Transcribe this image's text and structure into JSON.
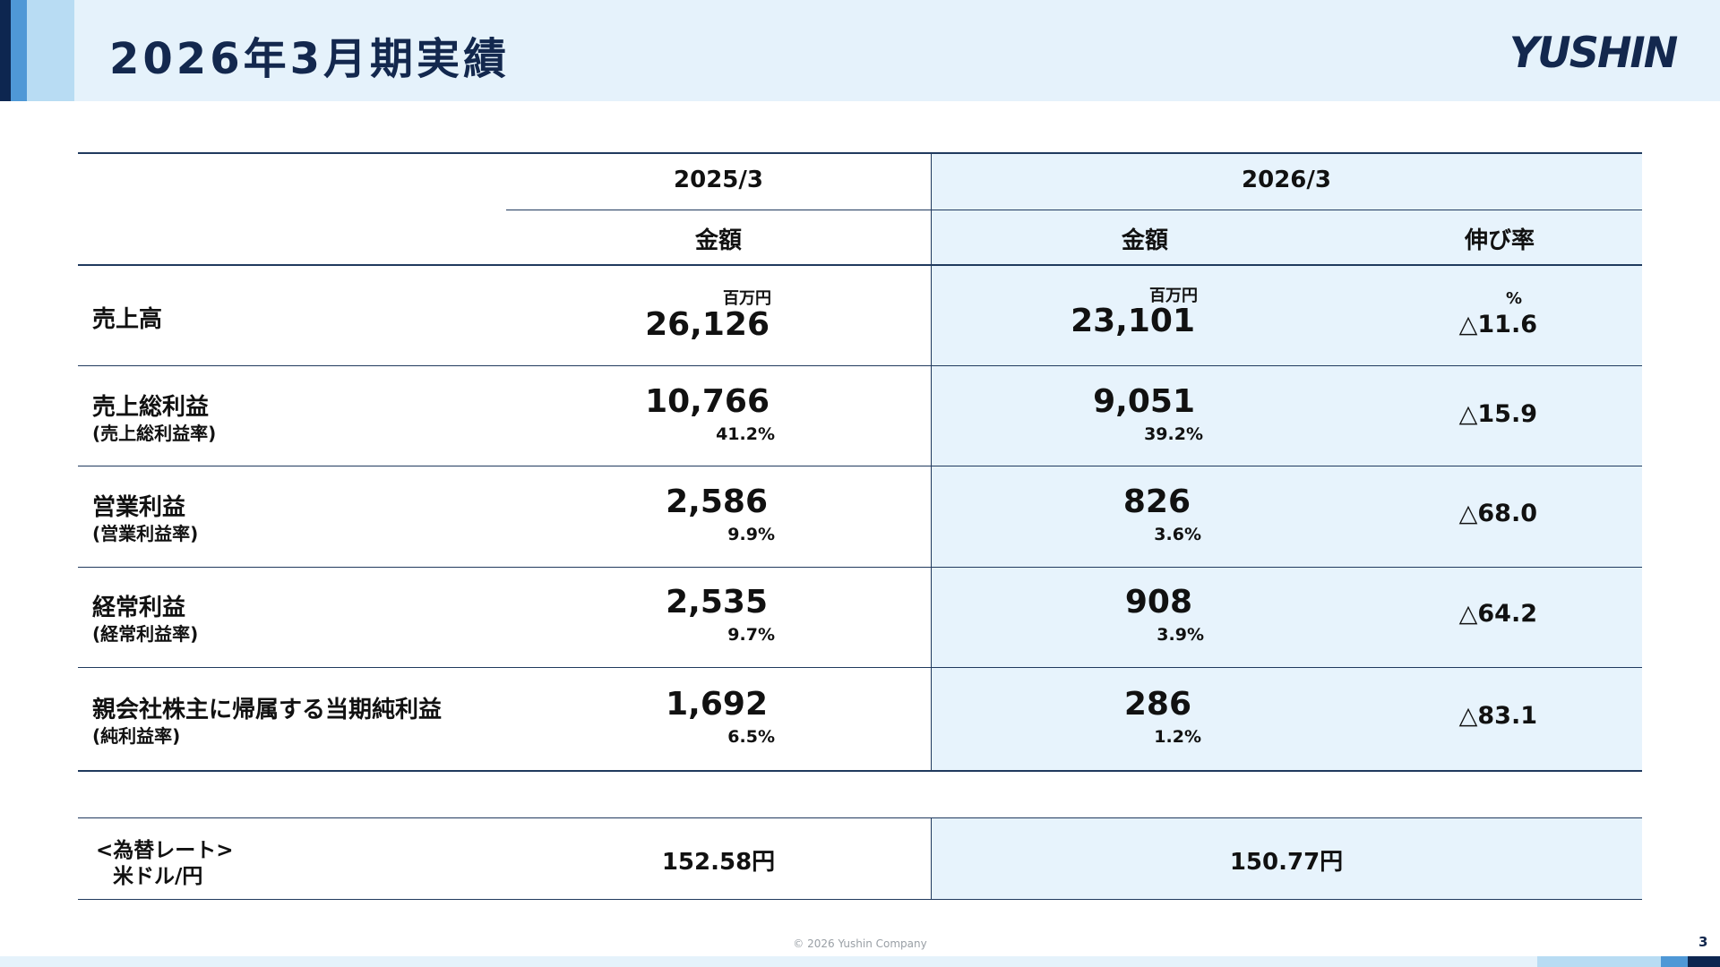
{
  "header": {
    "title": "2026年3月期実績",
    "logo": "YUSHIN"
  },
  "table": {
    "col_2025": "2025/3",
    "col_2026": "2026/3",
    "sub_amount_2025": "金額",
    "sub_amount_2026": "金額",
    "sub_growth": "伸び率",
    "unit_million_yen": "百万円",
    "unit_percent": "%",
    "rows": [
      {
        "label": "売上高",
        "sublabel": "",
        "v2025": "26,126",
        "r2025": "",
        "v2026": "23,101",
        "r2026": "",
        "growth": "△11.6"
      },
      {
        "label": "売上総利益",
        "sublabel": "(売上総利益率)",
        "v2025": "10,766",
        "r2025": "41.2%",
        "v2026": "9,051",
        "r2026": "39.2%",
        "growth": "△15.9"
      },
      {
        "label": "営業利益",
        "sublabel": "(営業利益率)",
        "v2025": "2,586",
        "r2025": "9.9%",
        "v2026": "826",
        "r2026": "3.6%",
        "growth": "△68.0"
      },
      {
        "label": "経常利益",
        "sublabel": "(経常利益率)",
        "v2025": "2,535",
        "r2025": "9.7%",
        "v2026": "908",
        "r2026": "3.9%",
        "growth": "△64.2"
      },
      {
        "label": "親会社株主に帰属する当期純利益",
        "sublabel": "(純利益率)",
        "v2025": "1,692",
        "r2025": "6.5%",
        "v2026": "286",
        "r2026": "1.2%",
        "growth": "△83.1"
      }
    ]
  },
  "fx": {
    "label_line1": "<為替レート>",
    "label_line2": "米ドル/円",
    "v2025": "152.58円",
    "v2026": "150.77円"
  },
  "footer": {
    "copyright": "© 2026 Yushin Company",
    "page_number": "3"
  }
}
